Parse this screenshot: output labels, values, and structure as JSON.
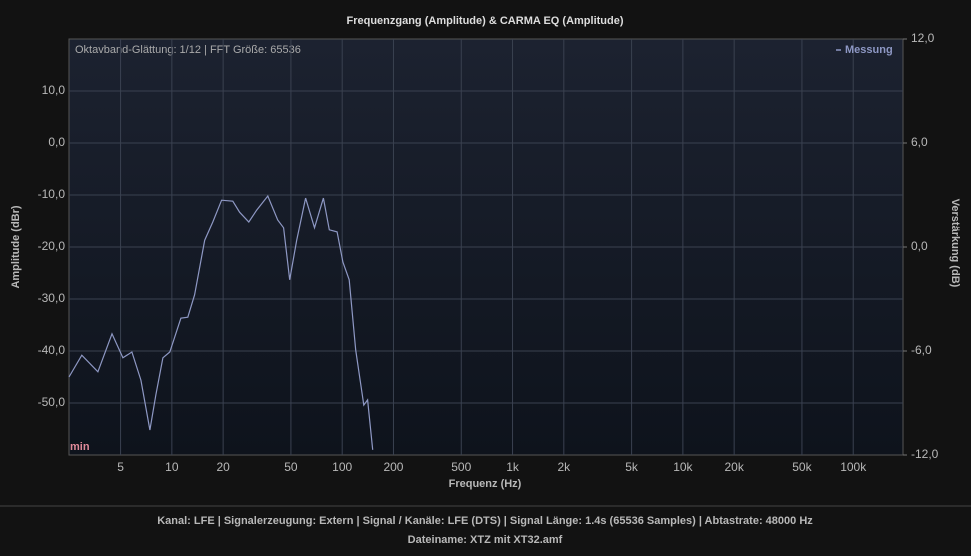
{
  "chart_data": {
    "type": "line",
    "title": "Frequenzgang (Amplitude) & CARMA EQ (Amplitude)",
    "annotation": "Oktavband-Glättung: 1/12 | FFT Größe: 65536",
    "min_label": "min",
    "xlabel": "Frequenz (Hz)",
    "ylabel": "Amplitude (dBr)",
    "y2label": "Verstärkung (dB)",
    "xscale": "log",
    "grid": true,
    "legend": "top-right",
    "xlim": [
      2.49,
      196000
    ],
    "xticks": [
      5,
      10,
      20,
      50,
      100,
      200,
      500,
      {
        "value": 1000,
        "label": "1k"
      },
      {
        "value": 2000,
        "label": "2k"
      },
      {
        "value": 5000,
        "label": "5k"
      },
      {
        "value": 10000,
        "label": "10k"
      },
      {
        "value": 20000,
        "label": "20k"
      },
      {
        "value": 50000,
        "label": "50k"
      },
      {
        "value": 100000,
        "label": "100k"
      }
    ],
    "ylim": [
      -60,
      20
    ],
    "yticks": [
      {
        "value": -50,
        "label": "-50,0"
      },
      {
        "value": -40,
        "label": "-40,0"
      },
      {
        "value": -30,
        "label": "-30,0"
      },
      {
        "value": -20,
        "label": "-20,0"
      },
      {
        "value": -10,
        "label": "-10,0"
      },
      {
        "value": 0,
        "label": "0,0"
      },
      {
        "value": 10,
        "label": "10,0"
      }
    ],
    "y2lim": [
      -12,
      12
    ],
    "y2ticks": [
      {
        "value": -12,
        "label": "-12,0"
      },
      {
        "value": -6,
        "label": "-6,0"
      },
      {
        "value": 0,
        "label": "0,0"
      },
      {
        "value": 6,
        "label": "6,0"
      },
      {
        "value": 12,
        "label": "12,0"
      }
    ],
    "x": [
      2.49,
      2.96,
      3.68,
      4.45,
      5.16,
      5.83,
      6.58,
      7.43,
      8.05,
      8.86,
      9.73,
      11.3,
      12.4,
      13.6,
      15.6,
      17.4,
      19.6,
      22.8,
      25.0,
      28.3,
      31.5,
      36.6,
      41.8,
      45.3,
      49.2,
      54.1,
      61.0,
      68.8,
      77.6,
      84.0,
      93.4,
      101,
      110,
      120,
      134,
      141,
      151
    ],
    "series": [
      {
        "name": "Messung",
        "color": "#8e98c4",
        "values": [
          -45,
          -40.8,
          -44,
          -36.7,
          -41.3,
          -40.2,
          -45.6,
          -55.2,
          -48.5,
          -41.3,
          -40.2,
          -33.7,
          -33.5,
          -29.2,
          -18.7,
          -15.2,
          -11,
          -11.2,
          -13.3,
          -15.2,
          -12.9,
          -10.2,
          -14.8,
          -16.3,
          -26.3,
          -18.7,
          -10.6,
          -16.3,
          -10.6,
          -16.7,
          -17.1,
          -22.9,
          -26.3,
          -39.8,
          -50.4,
          -49.4,
          -59
        ]
      }
    ],
    "footer": [
      "Kanal: LFE  |  Signalerzeugung: Extern   |  Signal / Kanäle: LFE (DTS)  |  Signal Länge: 1.4s (65536 Samples)  |  Abtastrate: 48000 Hz",
      "Dateiname: XTZ mit XT32.amf"
    ]
  }
}
